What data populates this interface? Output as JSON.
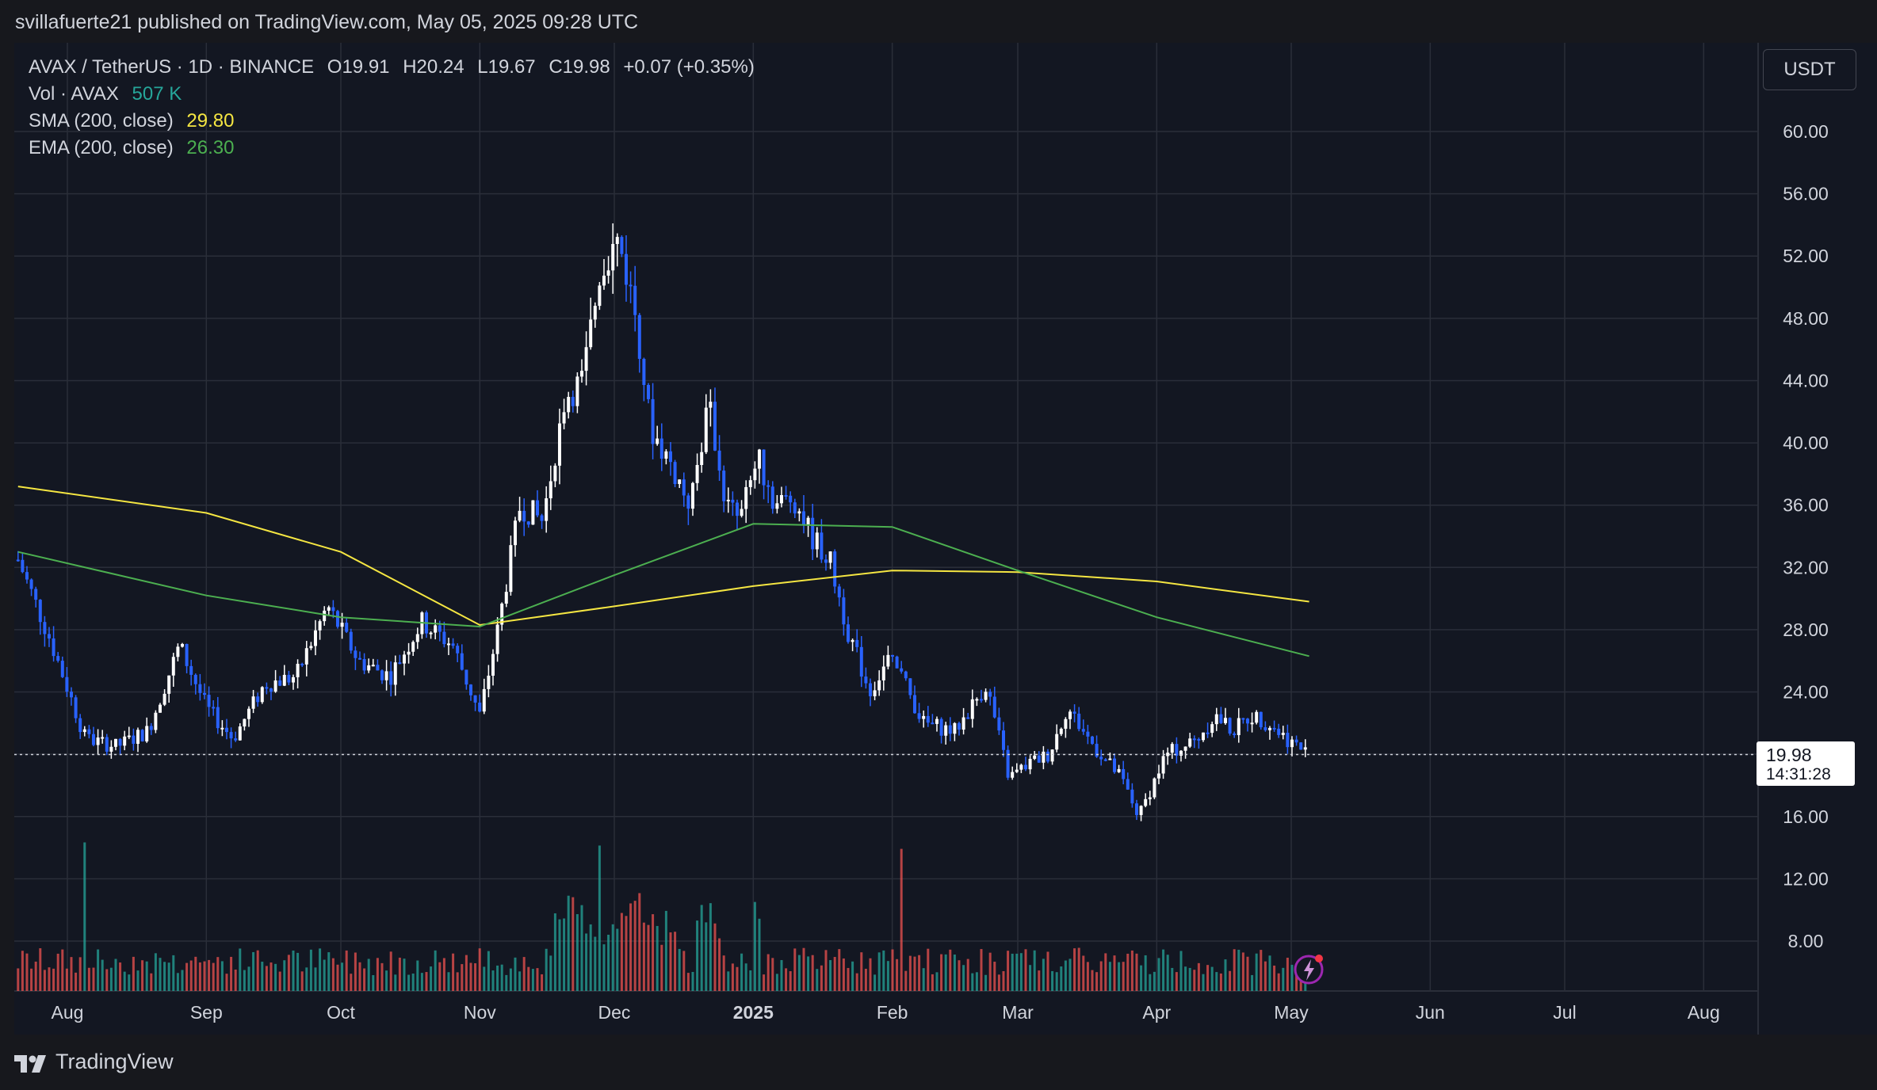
{
  "header": {
    "publisher": "svillafuerte21 published on TradingView.com, May 05, 2025 09:28 UTC"
  },
  "legend": {
    "symbol": "AVAX / TetherUS · 1D · BINANCE",
    "open": "O19.91",
    "high": "H20.24",
    "low": "L19.67",
    "close": "C19.98",
    "change": "+0.07 (+0.35%)",
    "vol_label": "Vol · AVAX",
    "vol_value": "507 K",
    "sma_label": "SMA (200, close)",
    "sma_value": "29.80",
    "ema_label": "EMA (200, close)",
    "ema_value": "26.30"
  },
  "currency_button": "USDT",
  "price_tag": {
    "price": "19.98",
    "countdown": "14:31:28"
  },
  "branding": "TradingView",
  "colors": {
    "background": "#131722",
    "grid": "#2a2e39",
    "up": "#ffffff",
    "down": "#2962ff",
    "sma": "#f5e642",
    "ema": "#4caf50",
    "vol_up": "#26a69a",
    "vol_down": "#ef5350"
  },
  "chart_data": {
    "type": "candlestick",
    "interval": "1D",
    "y_axis": {
      "ticks": [
        "60.00",
        "56.00",
        "52.00",
        "48.00",
        "44.00",
        "40.00",
        "36.00",
        "32.00",
        "28.00",
        "24.00",
        "20.00",
        "16.00",
        "12.00",
        "8.00"
      ],
      "scale": "linear",
      "position": "right"
    },
    "x_axis": {
      "ticks": [
        "Aug",
        "Sep",
        "Oct",
        "Nov",
        "Dec",
        "2025",
        "Feb",
        "Mar",
        "Apr",
        "May",
        "Jun",
        "Jul",
        "Aug"
      ]
    },
    "grid": true,
    "last_close": 19.98,
    "price_series": {
      "dates": [
        "2024-07-21",
        "2024-07-28",
        "2024-08-05",
        "2024-08-12",
        "2024-08-19",
        "2024-08-26",
        "2024-09-01",
        "2024-09-07",
        "2024-09-14",
        "2024-09-21",
        "2024-09-28",
        "2024-10-05",
        "2024-10-12",
        "2024-10-19",
        "2024-10-26",
        "2024-11-01",
        "2024-11-05",
        "2024-11-10",
        "2024-11-15",
        "2024-11-20",
        "2024-11-24",
        "2024-11-28",
        "2024-12-02",
        "2024-12-06",
        "2024-12-09",
        "2024-12-13",
        "2024-12-18",
        "2024-12-22",
        "2024-12-26",
        "2024-12-29",
        "2025-01-02",
        "2025-01-06",
        "2025-01-10",
        "2025-01-14",
        "2025-01-18",
        "2025-01-22",
        "2025-01-27",
        "2025-01-31",
        "2025-02-03",
        "2025-02-08",
        "2025-02-15",
        "2025-02-22",
        "2025-02-27",
        "2025-03-04",
        "2025-03-08",
        "2025-03-12",
        "2025-03-18",
        "2025-03-24",
        "2025-03-28",
        "2025-04-03",
        "2025-04-07",
        "2025-04-10",
        "2025-04-14",
        "2025-04-18",
        "2025-04-22",
        "2025-04-26",
        "2025-04-30",
        "2025-05-05"
      ],
      "close": [
        32.5,
        27.5,
        21,
        20.5,
        21.5,
        27,
        23,
        21,
        24.5,
        25,
        29.5,
        26,
        25,
        28.5,
        27,
        22.5,
        28,
        36,
        35,
        43,
        44,
        51.5,
        53,
        48,
        41,
        39,
        36,
        42.5,
        36,
        35,
        39,
        36,
        36.5,
        34,
        32.5,
        28,
        24,
        26,
        25,
        22,
        21.5,
        24.5,
        18.5,
        19.5,
        20,
        23,
        20.5,
        18.5,
        16,
        20,
        20.5,
        21,
        22.5,
        21.5,
        22.5,
        22,
        21,
        19.98
      ]
    },
    "indicators": {
      "sma_200": {
        "dates": [
          "2024-07-21",
          "2024-09-01",
          "2024-10-01",
          "2024-11-01",
          "2024-12-01",
          "2025-01-01",
          "2025-02-01",
          "2025-03-01",
          "2025-04-01",
          "2025-05-05"
        ],
        "values": [
          37.2,
          35.5,
          33,
          28.3,
          29.5,
          30.8,
          31.8,
          31.7,
          31.1,
          29.8
        ]
      },
      "ema_200": {
        "dates": [
          "2024-07-21",
          "2024-09-01",
          "2024-10-01",
          "2024-11-01",
          "2024-12-01",
          "2025-01-01",
          "2025-02-01",
          "2025-03-01",
          "2025-04-01",
          "2025-05-05"
        ],
        "values": [
          33,
          30.2,
          28.8,
          28.2,
          31.5,
          34.8,
          34.6,
          31.8,
          28.8,
          26.3
        ]
      },
      "volume_peak_dates": [
        "2024-08-05",
        "2024-11-28",
        "2025-02-03"
      ]
    }
  }
}
